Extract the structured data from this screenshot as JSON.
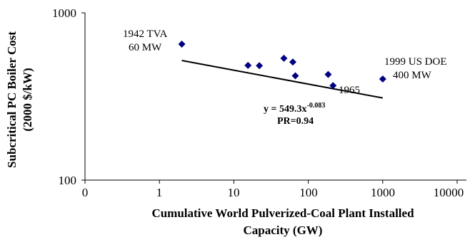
{
  "chart_data": {
    "type": "scatter",
    "title": "",
    "xlabel_line1": "Cumulative World Pulverized-Coal Plant Installed",
    "xlabel_line2": "Capacity (GW)",
    "ylabel_line1": "Subcritical PC Boiler Cost",
    "ylabel_line2": "(2000 $/kW)",
    "x_scale": "log",
    "y_scale": "log",
    "xlim": [
      0.1,
      10000
    ],
    "ylim": [
      100,
      1000
    ],
    "x_tick_labels": [
      "0",
      "1",
      "10",
      "100",
      "1000",
      "10000"
    ],
    "y_tick_labels": [
      "100",
      "1000"
    ],
    "grid": false,
    "marker_color": "#000080",
    "line_color": "#000000",
    "points": [
      {
        "x": 2,
        "y": 650
      },
      {
        "x": 15.5,
        "y": 485
      },
      {
        "x": 22,
        "y": 483
      },
      {
        "x": 47,
        "y": 535
      },
      {
        "x": 62,
        "y": 508
      },
      {
        "x": 67,
        "y": 420
      },
      {
        "x": 185,
        "y": 428
      },
      {
        "x": 215,
        "y": 367
      },
      {
        "x": 1000,
        "y": 402
      }
    ],
    "trendline": {
      "equation_base": "y = 549.3x",
      "equation_exponent": "-0.083",
      "pr_label": "PR=0.94",
      "coefficient": 549.3,
      "exponent": -0.083,
      "x_range": [
        2,
        1000
      ]
    },
    "annotations": {
      "tva_line1": "1942 TVA",
      "tva_line2": "60 MW",
      "doe_line1": "1999 US DOE",
      "doe_line2": "400 MW",
      "year_1965": "1965"
    }
  }
}
